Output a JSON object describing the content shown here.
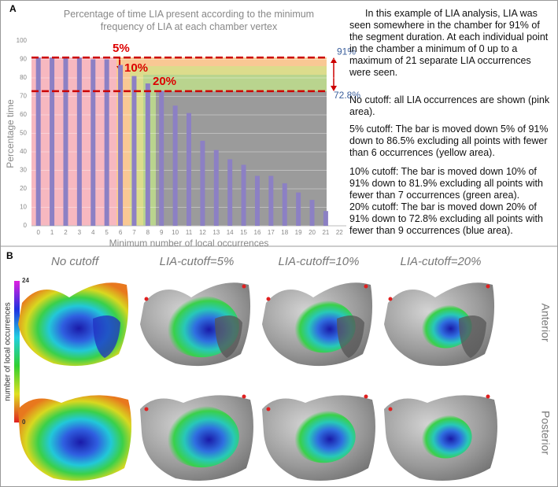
{
  "panel_a": {
    "label": "A"
  },
  "chart_data": {
    "type": "bar",
    "title": "Percentage of time LIA present according to the minimum frequency of LIA at each chamber vertex",
    "x_label": "Minimum number of local occurrences",
    "y_label": "Percentage time",
    "categories": [
      "0",
      "1",
      "2",
      "3",
      "4",
      "5",
      "6",
      "7",
      "8",
      "9",
      "10",
      "11",
      "12",
      "13",
      "14",
      "15",
      "16",
      "17",
      "18",
      "19",
      "20",
      "21",
      "22"
    ],
    "values": [
      91,
      91,
      91,
      91,
      90,
      90,
      87,
      81,
      77,
      73,
      65,
      61,
      46,
      41,
      36,
      33,
      27,
      27,
      23,
      18,
      14,
      8,
      null
    ],
    "color": "#8c80c4",
    "ylim": [
      0,
      100
    ],
    "yticks": [
      0,
      10,
      20,
      30,
      40,
      50,
      60,
      70,
      80,
      90,
      100
    ],
    "reference_lines": [
      {
        "value": 91,
        "label": "91%"
      },
      {
        "value": 72.8,
        "label": "72.8%"
      }
    ],
    "annotations": [
      "5%",
      "10%",
      "20%"
    ]
  },
  "description": [
    "In this example of LIA analysis, LIA was seen somewhere in the chamber for 91% of the segment duration. At each individual point in the chamber a minimum of 0 up to a maximum of 21 separate LIA occurrences were seen.",
    "No cutoff: all LIA occurrences are shown (pink area).",
    "5% cutoff: The bar is moved down 5% of 91% down to 86.5% excluding all points with fewer than 6 occurrences (yellow area).",
    "10% cutoff: The bar is moved down 10% of 91% down to 81.9% excluding all points with fewer than 7 occurrences (green area).",
    "20% cutoff: The bar is moved down 20% of 91% down to 72.8% excluding all points with fewer than 9 occurrences (blue area)."
  ],
  "panel_b": {
    "label": "B",
    "columns": [
      "No cutoff",
      "LIA-cutoff=5%",
      "LIA-cutoff=10%",
      "LIA-cutoff=20%"
    ],
    "rows": [
      "Anterior",
      "Posterior"
    ],
    "colorbar": {
      "label": "number of local occurrences",
      "ticks": [
        0,
        24
      ]
    }
  }
}
